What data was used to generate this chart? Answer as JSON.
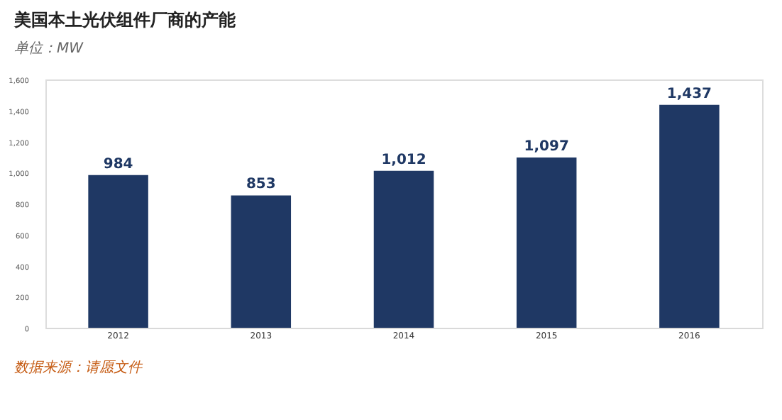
{
  "chart_data": {
    "type": "bar",
    "title": "美国本土光伏组件厂商的产能",
    "subtitle": "单位：MW",
    "categories": [
      "2012",
      "2013",
      "2014",
      "2015",
      "2016"
    ],
    "values": [
      984,
      853,
      1012,
      1097,
      1437
    ],
    "value_labels": [
      "984",
      "853",
      "1,012",
      "1,097",
      "1,437"
    ],
    "color": "#1f3864",
    "ylim": [
      0,
      1600
    ],
    "yticks": [
      0,
      {
        "value": 200,
        "label": "200"
      },
      {
        "value": 400,
        "label": "400"
      },
      {
        "value": 600,
        "label": "600"
      },
      {
        "value": 800,
        "label": "800"
      },
      {
        "value": 1000,
        "label": "1,000"
      },
      {
        "value": 1200,
        "label": "1,200"
      },
      {
        "value": 1400,
        "label": "1,400"
      },
      {
        "value": 1600,
        "label": "1,600"
      }
    ],
    "grid": false,
    "annotations": [
      "数据来源：请愿文件"
    ]
  }
}
